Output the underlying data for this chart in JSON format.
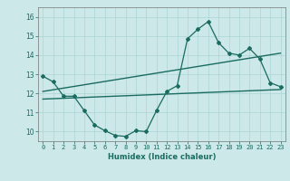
{
  "xlabel": "Humidex (Indice chaleur)",
  "background_color": "#cce8e8",
  "line_color": "#1a6b60",
  "xlim": [
    -0.5,
    23.5
  ],
  "ylim": [
    9.5,
    16.5
  ],
  "yticks": [
    10,
    11,
    12,
    13,
    14,
    15,
    16
  ],
  "xticks": [
    0,
    1,
    2,
    3,
    4,
    5,
    6,
    7,
    8,
    9,
    10,
    11,
    12,
    13,
    14,
    15,
    16,
    17,
    18,
    19,
    20,
    21,
    22,
    23
  ],
  "curve1_x": [
    0,
    1,
    2,
    3,
    4,
    5,
    6,
    7,
    8,
    9,
    10,
    11,
    12,
    13,
    14,
    15,
    16,
    17,
    18,
    19,
    20,
    21,
    22,
    23
  ],
  "curve1_y": [
    12.9,
    12.6,
    11.85,
    11.85,
    11.1,
    10.35,
    10.05,
    9.8,
    9.75,
    10.05,
    10.0,
    11.1,
    12.1,
    12.4,
    14.85,
    15.35,
    15.75,
    14.65,
    14.1,
    14.0,
    14.35,
    13.8,
    12.55,
    12.35
  ],
  "trend1_x": [
    0,
    23
  ],
  "trend1_y": [
    12.1,
    14.1
  ],
  "trend2_x": [
    0,
    23
  ],
  "trend2_y": [
    11.7,
    12.2
  ],
  "grid_color": "#aad4d4",
  "tick_fontsize": 5.0,
  "xlabel_fontsize": 6.0
}
